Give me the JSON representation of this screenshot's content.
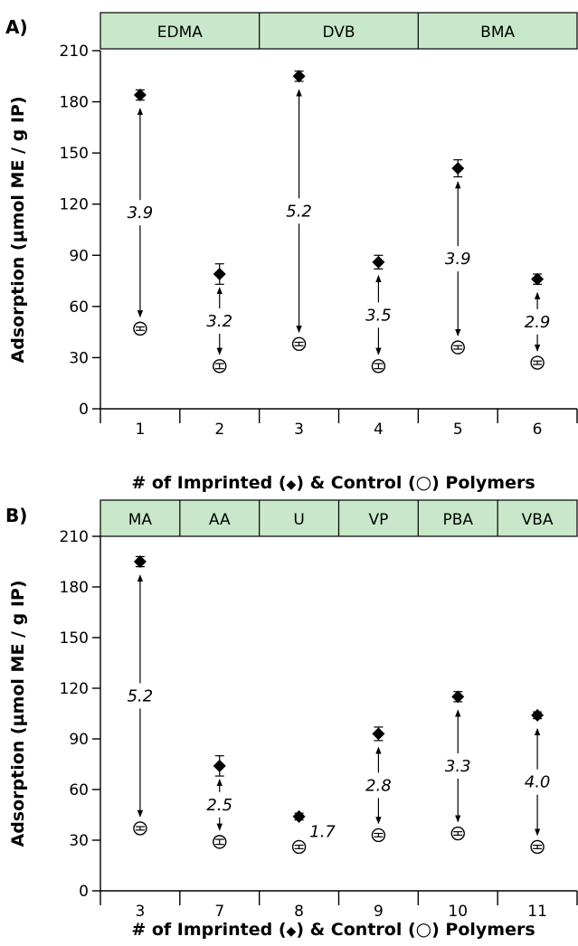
{
  "chart_data": [
    {
      "panel": "A)",
      "type": "scatter",
      "ylabel": "Adsorption (µmol ME / g IP)",
      "xlabel_parts": [
        "# of Imprinted (",
        ") & Control (",
        ") Polymers"
      ],
      "ylim": [
        0,
        210
      ],
      "yticks": [
        0,
        30,
        60,
        90,
        120,
        150,
        180,
        210
      ],
      "categories": [
        "1",
        "2",
        "3",
        "4",
        "5",
        "6"
      ],
      "groups": [
        {
          "label": "EDMA",
          "span": 2
        },
        {
          "label": "DVB",
          "span": 2
        },
        {
          "label": "BMA",
          "span": 2
        }
      ],
      "series": [
        {
          "name": "Imprinted",
          "marker": "diamond",
          "values": [
            184,
            79,
            195,
            86,
            141,
            76
          ],
          "errors": [
            3,
            6,
            3,
            4,
            5,
            3
          ]
        },
        {
          "name": "Control",
          "marker": "circle",
          "values": [
            47,
            25,
            38,
            25,
            36,
            27
          ],
          "errors": [
            1,
            1.5,
            1,
            1.5,
            1,
            1
          ]
        }
      ],
      "ratios": [
        "3.9",
        "3.2",
        "5.2",
        "3.5",
        "3.9",
        "2.9"
      ]
    },
    {
      "panel": "B)",
      "type": "scatter",
      "ylabel": "Adsorption (µmol ME / g IP)",
      "xlabel_parts": [
        "# of Imprinted (",
        ") & Control (",
        ") Polymers"
      ],
      "ylim": [
        0,
        210
      ],
      "yticks": [
        0,
        30,
        60,
        90,
        120,
        150,
        180,
        210
      ],
      "categories": [
        "3",
        "7",
        "8",
        "9",
        "10",
        "11"
      ],
      "groups": [
        {
          "label": "MA",
          "span": 1
        },
        {
          "label": "AA",
          "span": 1
        },
        {
          "label": "U",
          "span": 1
        },
        {
          "label": "VP",
          "span": 1
        },
        {
          "label": "PBA",
          "span": 1
        },
        {
          "label": "VBA",
          "span": 1
        }
      ],
      "series": [
        {
          "name": "Imprinted",
          "marker": "diamond",
          "values": [
            195,
            74,
            44,
            93,
            115,
            104
          ],
          "errors": [
            3,
            6,
            2,
            4,
            3,
            2
          ]
        },
        {
          "name": "Control",
          "marker": "circle",
          "values": [
            37,
            29,
            26,
            33,
            34,
            26
          ],
          "errors": [
            1,
            1.5,
            1,
            1,
            1,
            1
          ]
        }
      ],
      "ratios": [
        "5.2",
        "2.5",
        "1.7",
        "2.8",
        "3.3",
        "4.0"
      ]
    }
  ]
}
